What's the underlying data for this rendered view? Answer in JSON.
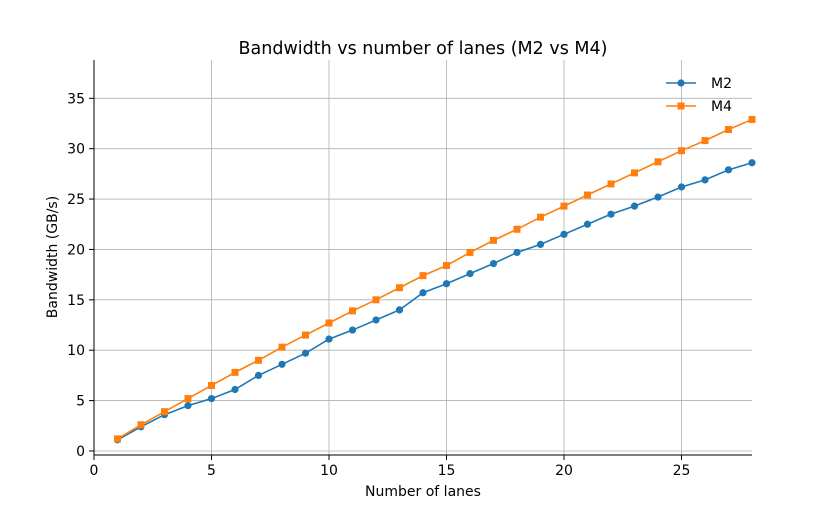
{
  "chart_data": {
    "type": "line",
    "title": "Bandwidth vs number of lanes (M2 vs M4)",
    "xlabel": "Number of lanes",
    "ylabel": "Bandwidth (GB/s)",
    "xlim": [
      0,
      28
    ],
    "ylim": [
      -0.4,
      38.8
    ],
    "xticks": [
      0,
      5,
      10,
      15,
      20,
      25
    ],
    "yticks": [
      0,
      5,
      10,
      15,
      20,
      25,
      30,
      35
    ],
    "grid": true,
    "legend_position": "top-right",
    "x": [
      1,
      2,
      3,
      4,
      5,
      6,
      7,
      8,
      9,
      10,
      11,
      12,
      13,
      14,
      15,
      16,
      17,
      18,
      19,
      20,
      21,
      22,
      23,
      24,
      25,
      26,
      27,
      28
    ],
    "series": [
      {
        "name": "M2",
        "color": "#1f77b4",
        "marker": "circle",
        "values": [
          1.1,
          2.4,
          3.6,
          4.5,
          5.2,
          6.1,
          7.5,
          8.6,
          9.7,
          11.1,
          12.0,
          13.0,
          14.0,
          15.7,
          16.6,
          17.6,
          18.6,
          19.7,
          20.5,
          21.5,
          22.5,
          23.5,
          24.3,
          25.2,
          26.2,
          26.9,
          27.9,
          28.6
        ]
      },
      {
        "name": "M4",
        "color": "#ff7f0e",
        "marker": "square",
        "values": [
          1.2,
          2.6,
          3.9,
          5.2,
          6.5,
          7.8,
          9.0,
          10.3,
          11.5,
          12.7,
          13.9,
          15.0,
          16.2,
          17.4,
          18.4,
          19.7,
          20.9,
          22.0,
          23.2,
          24.3,
          25.4,
          26.5,
          27.6,
          28.7,
          29.8,
          30.8,
          31.9,
          32.9
        ]
      }
    ]
  }
}
